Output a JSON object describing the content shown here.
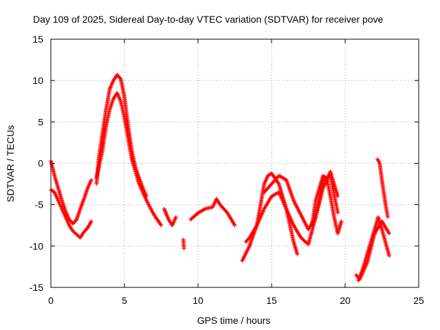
{
  "chart_data": {
    "type": "scatter",
    "title": "Day 109 of 2025, Sidereal Day-to-day VTEC variation (SDTVAR) for receiver pove",
    "xlabel": "GPS time / hours",
    "ylabel": "SDTVAR / TECUs",
    "xlim": [
      0,
      25
    ],
    "ylim": [
      -15,
      15
    ],
    "x_ticks": [
      0,
      5,
      10,
      15,
      20,
      25
    ],
    "y_ticks": [
      -15,
      -10,
      -5,
      0,
      5,
      10,
      15
    ],
    "grid": true,
    "marker": "+",
    "color": "#ff0000",
    "series": [
      {
        "name": "s1",
        "x": [
          0.0,
          0.25,
          0.5,
          0.75,
          1.0,
          1.25,
          1.5,
          1.75,
          2.0,
          2.25,
          2.5,
          2.75
        ],
        "y": [
          0.3,
          -1.5,
          -3.0,
          -4.5,
          -5.8,
          -6.8,
          -7.3,
          -6.8,
          -5.5,
          -4.3,
          -3.0,
          -2.0
        ]
      },
      {
        "name": "s2",
        "x": [
          0.0,
          0.25,
          0.5,
          0.75,
          1.0,
          1.25,
          1.5,
          1.75,
          2.0,
          2.25,
          2.5,
          2.75
        ],
        "y": [
          -3.2,
          -3.5,
          -4.5,
          -5.5,
          -6.5,
          -7.5,
          -8.2,
          -8.6,
          -9.0,
          -8.3,
          -7.8,
          -7.0
        ]
      },
      {
        "name": "s3",
        "x": [
          3.1,
          3.25,
          3.5,
          3.75,
          4.0,
          4.25,
          4.5,
          4.75,
          5.0,
          5.25,
          5.5,
          5.75,
          6.0,
          6.25,
          6.5
        ],
        "y": [
          -2.5,
          0.5,
          3.5,
          6.5,
          9.0,
          10.0,
          10.7,
          10.2,
          8.0,
          4.5,
          1.5,
          -0.5,
          -1.8,
          -3.0,
          -4.0
        ]
      },
      {
        "name": "s4",
        "x": [
          3.1,
          3.5,
          3.75,
          4.0,
          4.25,
          4.5,
          4.75,
          5.0,
          5.5,
          6.0,
          6.5,
          7.0,
          7.5
        ],
        "y": [
          -1.8,
          1.5,
          4.5,
          6.5,
          7.8,
          8.5,
          7.5,
          5.5,
          0.5,
          -2.5,
          -4.5,
          -6.2,
          -7.5
        ]
      },
      {
        "name": "s5",
        "x": [
          7.7,
          8.0,
          8.25,
          8.5
        ],
        "y": [
          -5.5,
          -6.8,
          -7.5,
          -6.5
        ]
      },
      {
        "name": "s6",
        "x": [
          9.0,
          9.05
        ],
        "y": [
          -9.2,
          -10.3
        ]
      },
      {
        "name": "s7",
        "x": [
          9.5,
          10.0,
          10.5,
          11.0,
          11.25,
          11.5,
          12.0,
          12.5
        ],
        "y": [
          -6.8,
          -6.0,
          -5.5,
          -5.3,
          -4.3,
          -5.0,
          -6.0,
          -7.5
        ]
      },
      {
        "name": "s8",
        "x": [
          13.0,
          13.5,
          14.0,
          14.25,
          14.5,
          14.75,
          15.0,
          15.5,
          16.0,
          16.5,
          16.75
        ],
        "y": [
          -11.8,
          -10.0,
          -7.5,
          -5.0,
          -2.5,
          -1.5,
          -1.2,
          -2.5,
          -5.5,
          -9.5,
          -11.0
        ]
      },
      {
        "name": "s9",
        "x": [
          13.25,
          13.5,
          14.0,
          14.5,
          15.0,
          15.5,
          16.0,
          16.5,
          17.0,
          17.5,
          18.0,
          18.5,
          19.0,
          19.5
        ],
        "y": [
          -9.5,
          -9.0,
          -7.5,
          -5.5,
          -4.0,
          -3.5,
          -5.5,
          -7.5,
          -9.0,
          -9.8,
          -6.5,
          -2.0,
          -1.5,
          -6.0
        ]
      },
      {
        "name": "s10",
        "x": [
          14.5,
          15.0,
          15.5,
          16.0,
          16.5,
          17.5,
          18.0,
          18.5,
          19.0,
          19.5
        ],
        "y": [
          -3.5,
          -2.5,
          -1.5,
          -2.0,
          -4.5,
          -8.0,
          -6.5,
          -3.0,
          -1.0,
          -4.0
        ]
      },
      {
        "name": "s11",
        "x": [
          17.75,
          18.0,
          18.5,
          18.75,
          19.0,
          19.25,
          19.5,
          19.75
        ],
        "y": [
          -7.5,
          -4.5,
          -1.5,
          -1.8,
          -4.0,
          -6.5,
          -8.5,
          -7.0
        ]
      },
      {
        "name": "s12",
        "x": [
          20.75,
          21.0,
          21.5,
          22.0,
          22.5,
          23.0
        ],
        "y": [
          -13.5,
          -14.0,
          -12.0,
          -8.5,
          -7.0,
          -8.5
        ]
      },
      {
        "name": "s13",
        "x": [
          20.9,
          21.25,
          21.75,
          22.25,
          22.5,
          23.0
        ],
        "y": [
          -14.2,
          -12.5,
          -9.5,
          -6.5,
          -8.0,
          -11.2
        ]
      },
      {
        "name": "s14",
        "x": [
          22.2,
          22.35,
          22.5,
          22.75,
          22.9
        ],
        "y": [
          0.5,
          0.0,
          -2.0,
          -5.0,
          -6.5
        ]
      }
    ]
  }
}
